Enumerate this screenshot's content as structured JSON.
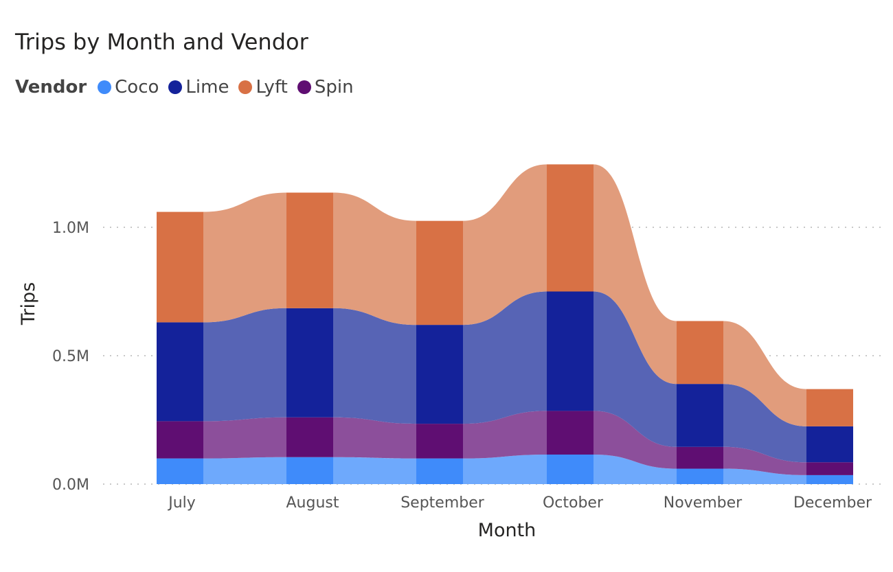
{
  "chart_data": {
    "type": "area",
    "title": "Trips by Month and Vendor",
    "legend_title": "Vendor",
    "legend_position": "top-left",
    "xlabel": "Month",
    "ylabel": "Trips",
    "categories": [
      "July",
      "August",
      "September",
      "October",
      "November",
      "December"
    ],
    "ylim": [
      0,
      1300000
    ],
    "y_ticks": [
      {
        "value": 0,
        "label": "0.0M"
      },
      {
        "value": 500000,
        "label": "0.5M"
      },
      {
        "value": 1000000,
        "label": "1.0M"
      }
    ],
    "grid": "horizontal-dotted",
    "stacked": true,
    "series": [
      {
        "name": "Coco",
        "color": "#3F8BFA",
        "light_color": "#6EA9FC",
        "values": [
          100000,
          105000,
          100000,
          115000,
          60000,
          35000
        ]
      },
      {
        "name": "Spin",
        "color": "#5F0E72",
        "light_color": "#8C4F9B",
        "values": [
          145000,
          155000,
          135000,
          170000,
          85000,
          50000
        ]
      },
      {
        "name": "Lime",
        "color": "#14229A",
        "light_color": "#5764B5",
        "values": [
          385000,
          425000,
          385000,
          465000,
          245000,
          140000
        ]
      },
      {
        "name": "Lyft",
        "color": "#D87145",
        "light_color": "#E19C7C",
        "values": [
          430000,
          450000,
          405000,
          495000,
          245000,
          145000
        ]
      }
    ]
  }
}
